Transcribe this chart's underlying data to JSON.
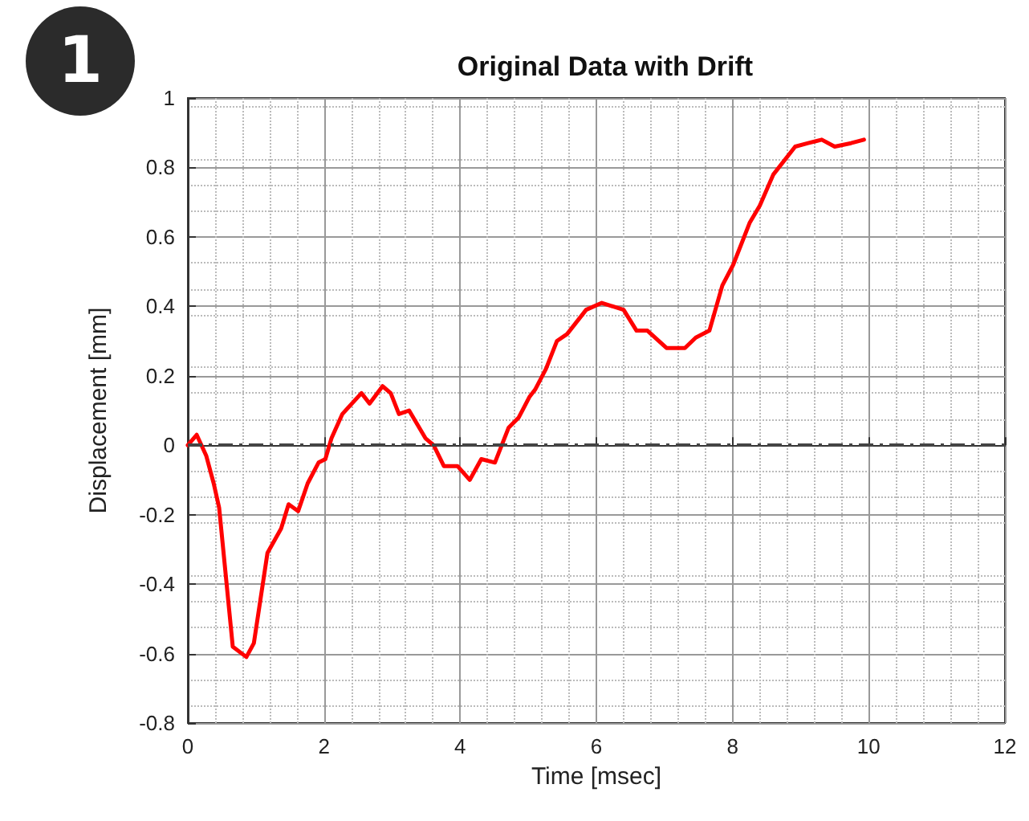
{
  "chart_data": {
    "type": "line",
    "title": "Original Data with Drift",
    "xlabel": "Time [msec]",
    "ylabel": "Displacement [mm]",
    "annotations": [
      "1"
    ],
    "x": [
      0,
      0.13,
      0.27,
      0.38,
      0.46,
      0.66,
      0.86,
      0.97,
      1.17,
      1.37,
      1.48,
      1.62,
      1.76,
      1.92,
      2.02,
      2.11,
      2.27,
      2.55,
      2.67,
      2.86,
      2.98,
      3.1,
      3.25,
      3.49,
      3.61,
      3.76,
      3.96,
      4.14,
      4.31,
      4.51,
      4.71,
      4.86,
      5.02,
      5.1,
      5.26,
      5.42,
      5.57,
      5.85,
      6.08,
      6.4,
      6.59,
      6.75,
      7.03,
      7.3,
      7.46,
      7.66,
      7.85,
      8.01,
      8.25,
      8.4,
      8.6,
      8.92,
      9.11,
      9.31,
      9.5,
      9.74,
      9.93
    ],
    "series": [
      {
        "color": "#ff0000",
        "values": [
          0,
          0.03,
          -0.03,
          -0.11,
          -0.18,
          -0.58,
          -0.61,
          -0.57,
          -0.31,
          -0.24,
          -0.17,
          -0.19,
          -0.11,
          -0.05,
          -0.04,
          0.02,
          0.09,
          0.15,
          0.12,
          0.17,
          0.15,
          0.09,
          0.1,
          0.02,
          0,
          -0.06,
          -0.06,
          -0.1,
          -0.04,
          -0.05,
          0.05,
          0.08,
          0.14,
          0.16,
          0.22,
          0.3,
          0.32,
          0.39,
          0.41,
          0.39,
          0.33,
          0.33,
          0.28,
          0.28,
          0.31,
          0.33,
          0.46,
          0.52,
          0.64,
          0.69,
          0.78,
          0.86,
          0.87,
          0.88,
          0.86,
          0.87,
          0.88
        ]
      }
    ],
    "xlim": [
      0,
      12
    ],
    "xticks": [
      0,
      2,
      4,
      6,
      8,
      10,
      12
    ],
    "ylim": [
      -0.8,
      1
    ],
    "yticks": [
      -0.8,
      -0.6,
      -0.4,
      -0.2,
      0,
      0.2,
      0.4,
      0.6,
      0.8,
      1
    ],
    "ref_lines": [
      {
        "axis": "y",
        "value": 0,
        "color": "#444444",
        "line_style": "dashed"
      }
    ],
    "grid": true,
    "marker": "none",
    "line_style": "solid"
  }
}
